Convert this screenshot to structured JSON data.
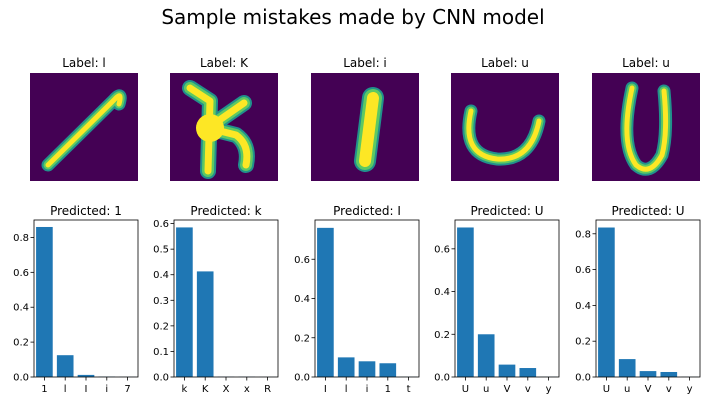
{
  "figure": {
    "title": "Sample mistakes made by CNN model",
    "colors": {
      "bar": "#1f77b4",
      "image_background": "#440154",
      "stroke_outer": "#21918c",
      "stroke_mid": "#5ec962",
      "stroke_core": "#fde725"
    }
  },
  "samples": [
    {
      "label_title": "Label: l",
      "true_label": "l",
      "glyph": "diagonal-stroke"
    },
    {
      "label_title": "Label: K",
      "true_label": "K",
      "glyph": "letter-k"
    },
    {
      "label_title": "Label: i",
      "true_label": "i",
      "glyph": "vertical-stroke"
    },
    {
      "label_title": "Label: u",
      "true_label": "u",
      "glyph": "letter-u"
    },
    {
      "label_title": "Label: u",
      "true_label": "u",
      "glyph": "letter-u-tall"
    }
  ],
  "chart_data": [
    {
      "type": "bar",
      "title": "Predicted: 1",
      "categories": [
        "1",
        "l",
        "I",
        "i",
        "7"
      ],
      "values": [
        0.86,
        0.125,
        0.012,
        0.002,
        0.001
      ],
      "ylim": [
        0,
        0.9
      ],
      "yticks": [
        "0.0",
        "0.2",
        "0.4",
        "0.6",
        "0.8"
      ],
      "ytick_values": [
        0,
        0.2,
        0.4,
        0.6,
        0.8
      ],
      "xlabel": "",
      "ylabel": ""
    },
    {
      "type": "bar",
      "title": "Predicted: k",
      "categories": [
        "k",
        "K",
        "X",
        "x",
        "R"
      ],
      "values": [
        0.585,
        0.413,
        0.001,
        0.001,
        0.0005
      ],
      "ylim": [
        0,
        0.614
      ],
      "yticks": [
        "0.0",
        "0.1",
        "0.2",
        "0.3",
        "0.4",
        "0.5",
        "0.6"
      ],
      "ytick_values": [
        0,
        0.1,
        0.2,
        0.3,
        0.4,
        0.5,
        0.6
      ],
      "xlabel": "",
      "ylabel": ""
    },
    {
      "type": "bar",
      "title": "Predicted: I",
      "categories": [
        "I",
        "l",
        "i",
        "1",
        "t"
      ],
      "values": [
        0.76,
        0.1,
        0.08,
        0.07,
        0.001
      ],
      "ylim": [
        0,
        0.8
      ],
      "yticks": [
        "0.0",
        "0.2",
        "0.4",
        "0.6"
      ],
      "ytick_values": [
        0,
        0.2,
        0.4,
        0.6
      ],
      "xlabel": "",
      "ylabel": ""
    },
    {
      "type": "bar",
      "title": "Predicted: U",
      "categories": [
        "U",
        "u",
        "V",
        "v",
        "y"
      ],
      "values": [
        0.7,
        0.2,
        0.058,
        0.042,
        0.001
      ],
      "ylim": [
        0,
        0.735
      ],
      "yticks": [
        "0.0",
        "0.2",
        "0.4",
        "0.6"
      ],
      "ytick_values": [
        0,
        0.2,
        0.4,
        0.6
      ],
      "xlabel": "",
      "ylabel": ""
    },
    {
      "type": "bar",
      "title": "Predicted: U",
      "categories": [
        "U",
        "u",
        "V",
        "v",
        "y"
      ],
      "values": [
        0.835,
        0.1,
        0.033,
        0.028,
        0.001
      ],
      "ylim": [
        0,
        0.877
      ],
      "yticks": [
        "0.0",
        "0.2",
        "0.4",
        "0.6",
        "0.8"
      ],
      "ytick_values": [
        0,
        0.2,
        0.4,
        0.6,
        0.8
      ],
      "xlabel": "",
      "ylabel": ""
    }
  ]
}
